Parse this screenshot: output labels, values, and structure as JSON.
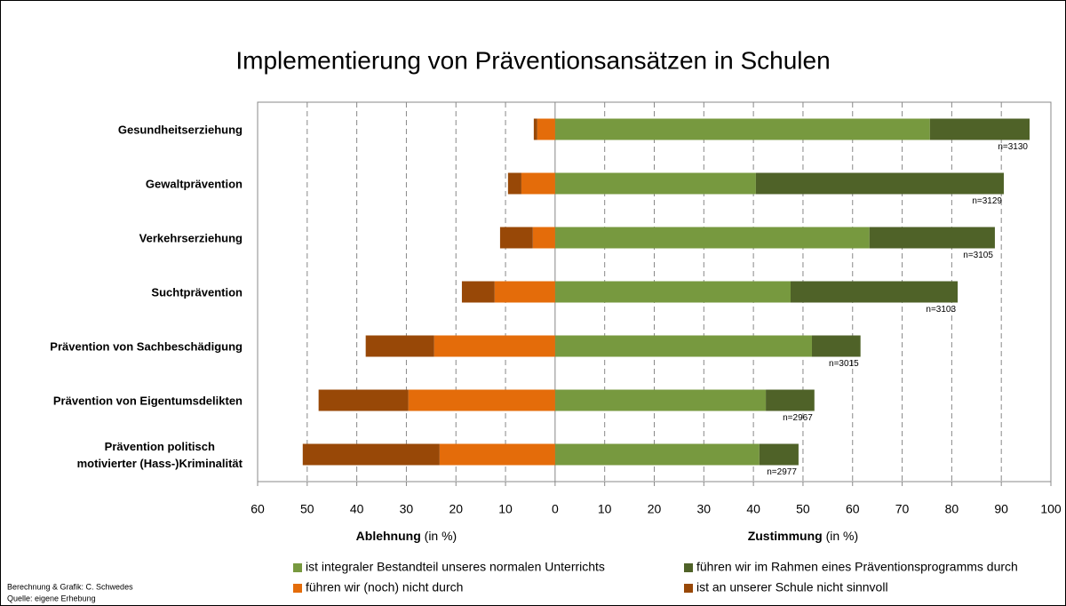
{
  "chart_data": {
    "type": "diverging_bar",
    "title": "Implementierung von Präventionsansätzen in Schulen",
    "categories": [
      "Gesundheitserziehung",
      "Gewaltprävention",
      "Verkehrserziehung",
      "Suchtprävention",
      "Prävention von Sachbeschädigung",
      "Prävention von Eigentumsdelikten",
      "Prävention politisch\nmotivierter (Hass-)Kriminalität"
    ],
    "series": [
      {
        "name": "ist integraler Bestandteil unseres normalen Unterrichts",
        "color": "#77993f",
        "values": [
          75.6,
          40.5,
          63.4,
          47.5,
          51.8,
          42.5,
          41.2
        ]
      },
      {
        "name": "führen wir im Rahmen eines Präventionsprogramms durch",
        "color": "#4f6228",
        "values": [
          20.1,
          50.0,
          25.3,
          33.7,
          9.8,
          9.8,
          7.9
        ]
      },
      {
        "name": "führen wir (noch) nicht durch",
        "color": "#e46c0a",
        "values": [
          -3.6,
          -6.8,
          -4.5,
          -12.2,
          -24.4,
          -29.6,
          -23.3
        ]
      },
      {
        "name": "ist an unserer Schule nicht sinnvoll",
        "color": "#984807",
        "values": [
          -0.7,
          -2.7,
          -6.6,
          -6.6,
          -13.8,
          -18.1,
          -27.6
        ]
      }
    ],
    "n_labels": [
      "n=3130",
      "n=3129",
      "n=3105",
      "n=3103",
      "n=3015",
      "n=2967",
      "n=2977"
    ],
    "xlim": [
      -60,
      100
    ],
    "xticks": [
      {
        "value": -60,
        "label": "60"
      },
      {
        "value": -50,
        "label": "50"
      },
      {
        "value": -40,
        "label": "40"
      },
      {
        "value": -30,
        "label": "30"
      },
      {
        "value": -20,
        "label": "20"
      },
      {
        "value": -10,
        "label": "10"
      },
      0,
      10,
      20,
      30,
      40,
      50,
      60,
      70,
      80,
      90,
      100
    ],
    "x_label_left": {
      "bold": "Ablehnung",
      "rest": "(in %)"
    },
    "x_label_right": {
      "bold": "Zustimmung",
      "rest": "(in %)"
    },
    "grid": true,
    "credits": [
      "Berechnung & Grafik: C. Schwedes",
      "Quelle: eigene Erhebung"
    ]
  }
}
